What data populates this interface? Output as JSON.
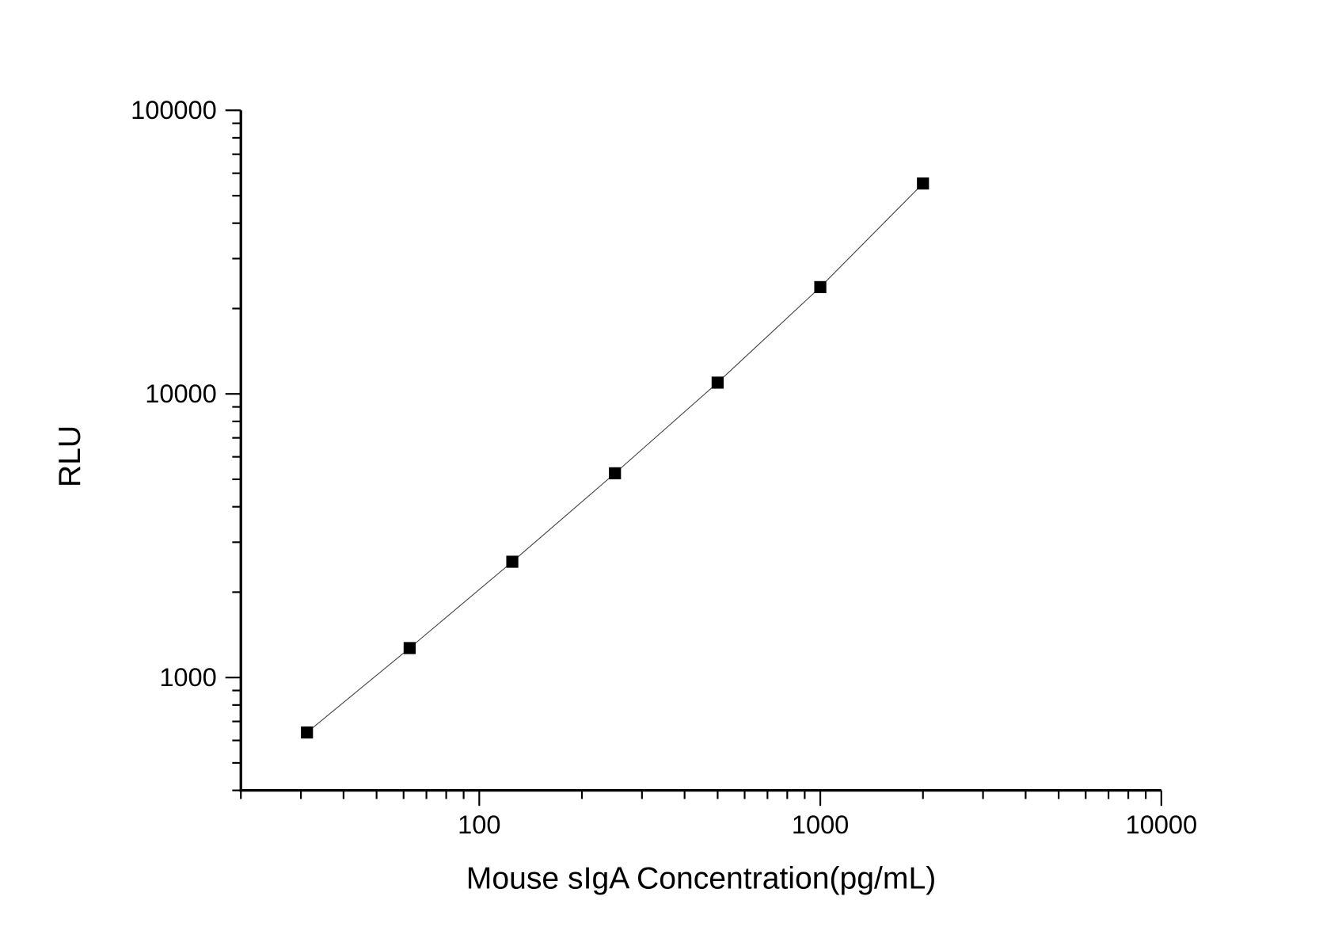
{
  "chart_data": {
    "type": "line",
    "title": "",
    "xlabel": "Mouse sIgA Concentration(pg/mL)",
    "ylabel": "RLU",
    "xscale": "log",
    "yscale": "log",
    "xlim": [
      20,
      10000
    ],
    "ylim": [
      400,
      100000
    ],
    "x_ticks": [
      "100",
      "1000",
      "10000"
    ],
    "y_ticks": [
      "1000",
      "10000",
      "100000"
    ],
    "grid": false,
    "legend": "none",
    "marker": "square",
    "colors": {
      "marker": "#000000",
      "line": "#404040",
      "axis": "#000000"
    },
    "series": [
      {
        "x": [
          31.25,
          62.5,
          125,
          250,
          500,
          1000,
          2000
        ],
        "y": [
          640,
          1270,
          2560,
          5250,
          10960,
          23800,
          55200
        ]
      }
    ]
  }
}
